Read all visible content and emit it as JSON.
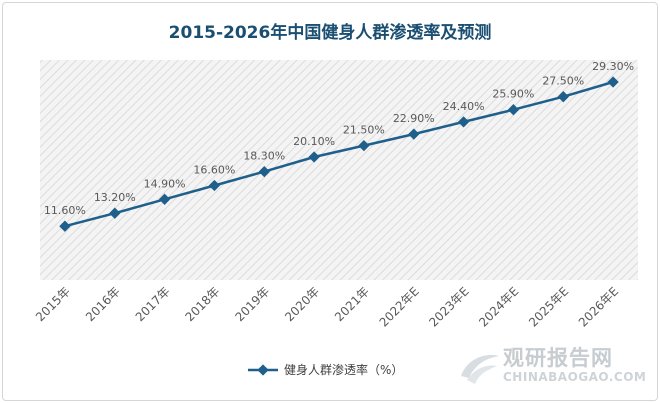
{
  "title": "2015-2026年中国健身人群渗透率及预测",
  "colors": {
    "title": "#1b4f72",
    "series": "#1f5f8b",
    "label": "#595959",
    "tick": "#595959",
    "plot_bg": "#f4f4f4",
    "hatch": "#dcdcdc"
  },
  "legend_label": "健身人群渗透率（%）",
  "watermark": {
    "cn": "观研报告网",
    "en": "CHINABAOGAO.COM"
  },
  "chart_data": {
    "type": "line",
    "title": "2015-2026年中国健身人群渗透率及预测",
    "categories": [
      "2015年",
      "2016年",
      "2017年",
      "2018年",
      "2019年",
      "2020年",
      "2021年",
      "2022年E",
      "2023年E",
      "2024年E",
      "2025年E",
      "2026年E"
    ],
    "series": [
      {
        "name": "健身人群渗透率（%）",
        "values": [
          11.6,
          13.2,
          14.9,
          16.6,
          18.3,
          20.1,
          21.5,
          22.9,
          24.4,
          25.9,
          27.5,
          29.3
        ],
        "labels": [
          "11.60%",
          "13.20%",
          "14.90%",
          "16.60%",
          "18.30%",
          "20.10%",
          "21.50%",
          "22.90%",
          "24.40%",
          "25.90%",
          "27.50%",
          "29.30%"
        ]
      }
    ],
    "ylim": [
      5,
      32
    ],
    "grid": false,
    "legend_position": "bottom"
  }
}
